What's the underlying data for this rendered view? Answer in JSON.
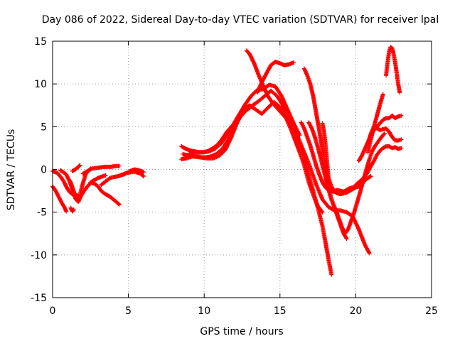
{
  "chart_data": {
    "type": "scatter",
    "title": "Day 086 of 2022, Sidereal Day-to-day VTEC variation (SDTVAR) for receiver lpal",
    "xlabel": "GPS time / hours",
    "ylabel": "SDTVAR / TECUs",
    "xlim": [
      0,
      25
    ],
    "ylim": [
      -15,
      15
    ],
    "xticks": [
      0,
      5,
      10,
      15,
      20,
      25
    ],
    "yticks": [
      -15,
      -10,
      -5,
      0,
      5,
      10,
      15
    ],
    "grid": true,
    "marker": "+",
    "color": "#ff0000",
    "series": [
      {
        "name": "track-1",
        "x": [
          0.0,
          0.3,
          0.5,
          0.7,
          0.9,
          1.1,
          1.3,
          1.5,
          1.8
        ],
        "y": [
          -0.2,
          -0.4,
          -0.8,
          -1.3,
          -2.0,
          -2.6,
          -2.9,
          -3.0,
          -3.1
        ]
      },
      {
        "name": "track-2",
        "x": [
          0.0,
          0.2,
          0.4,
          0.6,
          0.8,
          0.9
        ],
        "y": [
          -2.0,
          -2.5,
          -3.2,
          -3.9,
          -4.5,
          -4.9
        ]
      },
      {
        "name": "track-3",
        "x": [
          0.5,
          0.7,
          0.9,
          1.1,
          1.3,
          1.5,
          1.7,
          1.9,
          2.2,
          2.6,
          3.0,
          3.3,
          3.5
        ],
        "y": [
          -0.1,
          -0.3,
          -0.6,
          -1.3,
          -2.3,
          -3.4,
          -3.8,
          -3.0,
          -2.2,
          -1.4,
          -1.0,
          -0.8,
          -0.7
        ]
      },
      {
        "name": "track-4",
        "x": [
          1.0,
          1.2,
          1.4,
          1.6,
          1.8,
          2.0,
          2.2,
          2.5
        ],
        "y": [
          -1.0,
          -1.5,
          -2.6,
          -3.5,
          -3.0,
          -1.6,
          -0.5,
          0.1
        ]
      },
      {
        "name": "track-5",
        "x": [
          1.3,
          1.5,
          1.7,
          1.8
        ],
        "y": [
          -0.2,
          0.0,
          0.3,
          0.5
        ]
      },
      {
        "name": "track-6",
        "x": [
          1.2,
          1.3,
          1.4
        ],
        "y": [
          -4.5,
          -4.9,
          -4.7
        ]
      },
      {
        "name": "track-7",
        "x": [
          2.0,
          2.3,
          2.6,
          3.0,
          3.4,
          3.8,
          4.2,
          4.4
        ],
        "y": [
          -0.5,
          -0.2,
          0.1,
          0.2,
          0.3,
          0.3,
          0.4,
          0.4
        ]
      },
      {
        "name": "track-8",
        "x": [
          2.5,
          2.8,
          3.0,
          3.2,
          3.4,
          3.6,
          3.8,
          4.0,
          4.2,
          4.4
        ],
        "y": [
          -1.5,
          -1.7,
          -2.0,
          -2.5,
          -2.8,
          -3.0,
          -3.2,
          -3.5,
          -3.8,
          -4.1
        ]
      },
      {
        "name": "track-9",
        "x": [
          3.2,
          3.5,
          3.8,
          4.0,
          4.3,
          4.6,
          4.9,
          5.2,
          5.5,
          5.8,
          6.0
        ],
        "y": [
          -1.8,
          -1.4,
          -1.0,
          -0.9,
          -0.8,
          -0.6,
          -0.4,
          -0.3,
          -0.3,
          -0.5,
          -0.8
        ]
      },
      {
        "name": "track-10",
        "x": [
          4.5,
          4.8,
          5.1,
          5.4,
          5.7,
          6.0
        ],
        "y": [
          -0.7,
          -0.5,
          -0.2,
          0.0,
          -0.1,
          -0.3
        ]
      },
      {
        "name": "track-11",
        "x": [
          8.5,
          8.8,
          9.1,
          9.4,
          9.7,
          10.0,
          10.3,
          10.6,
          10.9,
          11.2,
          11.5,
          11.8,
          12.1,
          12.4,
          12.7,
          13.0
        ],
        "y": [
          2.7,
          2.4,
          2.2,
          2.1,
          2.0,
          2.0,
          2.2,
          2.5,
          2.9,
          3.6,
          4.4,
          5.0,
          5.6,
          6.2,
          6.8,
          7.2
        ]
      },
      {
        "name": "track-12",
        "x": [
          8.5,
          8.8,
          9.2,
          9.6,
          10.0,
          10.4,
          10.8,
          11.2,
          11.6,
          12.0,
          12.4,
          12.8,
          13.2,
          13.6,
          14.0,
          14.4,
          14.8,
          15.2,
          15.6,
          16.0,
          16.4,
          16.8,
          17.2,
          17.5,
          17.8,
          18.0,
          18.2,
          18.4
        ],
        "y": [
          1.2,
          1.3,
          1.5,
          1.5,
          1.4,
          1.5,
          1.8,
          2.4,
          3.5,
          5.0,
          6.2,
          7.0,
          7.5,
          8.0,
          8.6,
          9.2,
          8.6,
          7.5,
          6.2,
          4.5,
          2.5,
          0.0,
          -2.6,
          -4.5,
          -6.6,
          -8.5,
          -10.5,
          -12.3
        ]
      },
      {
        "name": "track-13",
        "x": [
          8.6,
          9.0,
          9.4,
          9.8,
          10.2,
          10.6,
          11.0,
          11.4,
          11.8,
          12.2,
          12.6,
          13.0,
          13.4,
          13.8,
          14.2,
          14.6,
          15.0,
          15.4,
          15.8,
          16.2,
          16.6,
          17.0,
          17.4,
          17.8,
          18.2,
          18.6,
          19.0,
          19.4,
          19.8,
          20.2,
          20.6,
          20.9
        ],
        "y": [
          1.8,
          1.6,
          1.5,
          1.4,
          1.3,
          1.3,
          1.6,
          2.3,
          3.8,
          5.6,
          7.0,
          7.5,
          7.0,
          6.5,
          7.2,
          7.9,
          7.3,
          6.4,
          5.2,
          3.7,
          2.0,
          0.2,
          -1.8,
          -3.5,
          -4.4,
          -4.8,
          -4.8,
          -5.0,
          -5.5,
          -7.0,
          -8.8,
          -9.8
        ]
      },
      {
        "name": "track-14",
        "x": [
          8.7,
          9.1,
          9.5,
          9.9,
          10.3,
          10.7,
          11.1,
          11.5,
          11.9,
          12.3,
          12.7,
          13.1,
          13.5,
          13.9,
          14.3,
          14.7,
          15.1,
          15.5,
          15.9,
          16.3
        ],
        "y": [
          1.6,
          1.8,
          2.0,
          2.0,
          2.1,
          2.4,
          3.0,
          4.0,
          5.2,
          6.4,
          7.6,
          8.6,
          9.3,
          9.4,
          9.9,
          9.7,
          8.6,
          7.0,
          5.4,
          4.0
        ]
      },
      {
        "name": "track-15",
        "x": [
          12.8,
          13.0,
          13.3,
          13.6,
          13.9,
          14.2,
          14.5,
          14.8,
          15.1,
          15.4,
          15.7,
          16.0,
          16.3,
          16.6,
          16.9,
          17.2,
          17.5,
          17.8
        ],
        "y": [
          13.9,
          13.5,
          12.4,
          11.0,
          9.8,
          8.6,
          7.8,
          7.2,
          6.6,
          6.0,
          4.8,
          3.4,
          2.0,
          0.5,
          -1.5,
          -3.0,
          -4.3,
          -5.0
        ]
      },
      {
        "name": "track-16",
        "x": [
          13.5,
          13.8,
          14.1,
          14.4,
          14.7,
          15.0,
          15.3,
          15.6,
          15.9
        ],
        "y": [
          9.0,
          10.2,
          11.2,
          12.2,
          12.6,
          12.4,
          12.2,
          12.3,
          12.5
        ]
      },
      {
        "name": "track-17",
        "x": [
          16.4,
          16.6,
          16.8,
          17.0,
          17.2,
          17.4,
          17.6,
          17.8,
          18.0,
          18.2,
          18.4,
          18.6,
          18.8,
          19.0,
          19.2,
          19.4,
          19.6,
          19.8,
          20.0,
          20.2,
          20.4,
          20.6,
          20.8,
          21.0
        ],
        "y": [
          5.5,
          4.8,
          3.8,
          2.8,
          1.6,
          0.4,
          -0.6,
          -1.5,
          -2.1,
          -2.4,
          -2.5,
          -2.5,
          -2.4,
          -2.5,
          -2.6,
          -2.4,
          -2.2,
          -2.1,
          -2.0,
          -1.8,
          -1.6,
          -1.3,
          -1.0,
          -0.8
        ]
      },
      {
        "name": "track-18",
        "x": [
          16.6,
          16.8,
          17.0,
          17.2,
          17.4,
          17.6,
          17.8,
          18.0,
          18.2,
          18.4,
          18.6,
          18.8,
          19.0,
          19.2,
          19.4,
          19.6,
          19.8,
          20.0,
          20.2,
          20.4
        ],
        "y": [
          11.8,
          11.0,
          10.0,
          8.5,
          6.5,
          4.5,
          2.4,
          0.6,
          -1.0,
          -2.0,
          -2.6,
          -2.8,
          -2.9,
          -2.8,
          -2.7,
          -2.5,
          -2.3,
          -2.1,
          -2.0,
          -1.8
        ]
      },
      {
        "name": "track-19",
        "x": [
          16.9,
          17.1,
          17.3,
          17.5,
          17.7,
          17.9,
          18.1,
          18.3,
          18.5,
          18.7,
          18.9,
          19.1,
          19.3,
          19.5,
          19.7,
          19.9,
          20.1,
          20.3,
          20.5,
          20.7,
          20.9,
          21.1,
          21.3,
          21.5,
          21.7,
          21.9
        ],
        "y": [
          5.5,
          4.8,
          3.8,
          2.6,
          1.2,
          -0.2,
          -1.6,
          -3.0,
          -4.0,
          -4.8,
          -5.8,
          -6.8,
          -7.5,
          -7.0,
          -6.0,
          -5.0,
          -3.8,
          -2.6,
          -1.3,
          0.0,
          1.2,
          2.2,
          2.8,
          3.3,
          3.8,
          4.2
        ]
      },
      {
        "name": "track-20",
        "x": [
          17.8,
          17.9,
          18.0,
          18.1,
          18.2,
          18.3,
          18.4,
          18.5,
          18.6
        ],
        "y": [
          5.4,
          4.5,
          3.0,
          1.0,
          -1.0,
          -2.0,
          -2.5,
          -2.6,
          -2.6
        ]
      },
      {
        "name": "track-21",
        "x": [
          17.6,
          17.8,
          18.0,
          18.2,
          18.4,
          18.6,
          18.8,
          19.0,
          19.2,
          19.4
        ],
        "y": [
          2.0,
          1.0,
          -0.5,
          -2.0,
          -3.5,
          -4.5,
          -5.5,
          -6.5,
          -7.5,
          -8.1
        ]
      },
      {
        "name": "track-22",
        "x": [
          20.2,
          20.4,
          20.6,
          20.8,
          21.0,
          21.2,
          21.4,
          21.6,
          21.8,
          22.0,
          22.2,
          22.4,
          22.6,
          22.8,
          23.0
        ],
        "y": [
          1.0,
          1.6,
          2.4,
          3.2,
          4.0,
          4.6,
          5.0,
          5.4,
          5.8,
          6.0,
          6.0,
          6.3,
          6.0,
          6.2,
          6.3
        ]
      },
      {
        "name": "track-23",
        "x": [
          20.0,
          20.2,
          20.4,
          20.6,
          20.8,
          21.0,
          21.2,
          21.4,
          21.6,
          21.8,
          22.0,
          22.2,
          22.4,
          22.6,
          22.8,
          23.0
        ],
        "y": [
          -1.8,
          -1.5,
          -1.2,
          -0.8,
          -0.3,
          0.4,
          1.0,
          1.7,
          2.2,
          2.5,
          2.7,
          2.7,
          2.5,
          2.6,
          2.4,
          2.5
        ]
      },
      {
        "name": "track-24",
        "x": [
          20.8,
          21.0,
          21.2,
          21.4,
          21.6,
          21.8,
          22.0,
          22.2,
          22.4,
          22.6,
          22.8,
          23.0
        ],
        "y": [
          3.0,
          4.2,
          5.0,
          4.8,
          4.6,
          4.7,
          4.8,
          4.4,
          3.8,
          3.4,
          3.4,
          3.5
        ]
      },
      {
        "name": "track-25",
        "x": [
          20.8,
          21.0,
          21.2,
          21.4,
          21.6,
          21.8
        ],
        "y": [
          2.0,
          3.5,
          5.0,
          6.3,
          7.6,
          8.8
        ]
      },
      {
        "name": "track-26",
        "x": [
          22.0,
          22.1,
          22.2,
          22.3,
          22.4,
          22.5,
          22.6,
          22.7,
          22.8,
          22.9
        ],
        "y": [
          11.0,
          12.5,
          13.8,
          14.3,
          14.2,
          13.5,
          12.5,
          11.3,
          10.0,
          9.0
        ]
      }
    ]
  }
}
